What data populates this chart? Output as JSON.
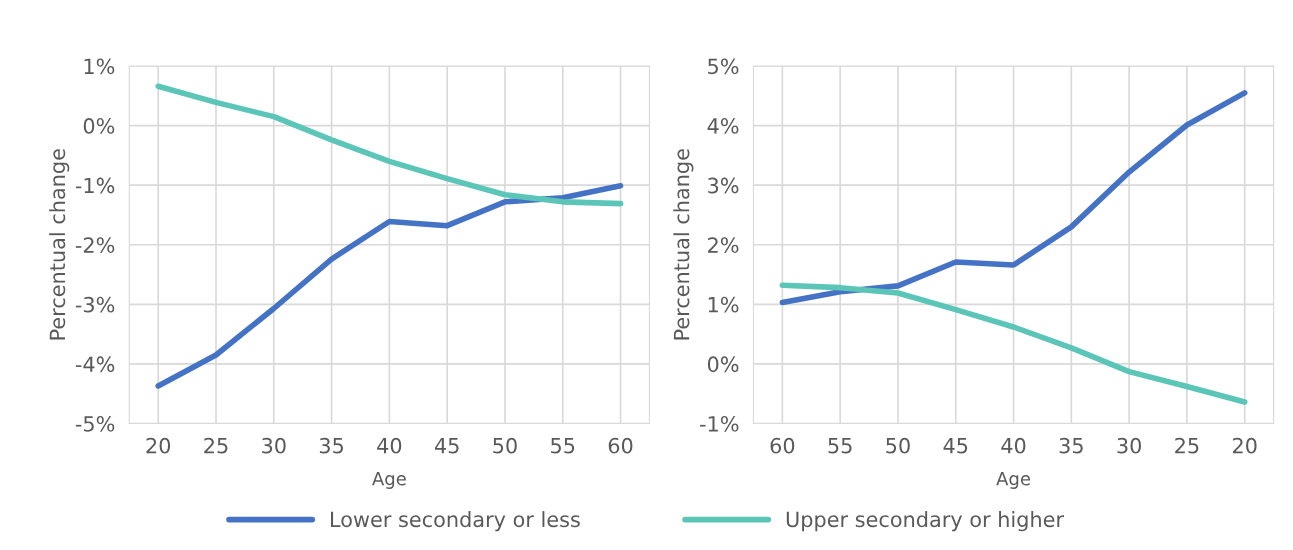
{
  "chart_data": [
    {
      "type": "line",
      "categories": [
        "20",
        "25",
        "30",
        "35",
        "40",
        "45",
        "50",
        "55",
        "60"
      ],
      "xlabel": "Age",
      "ylabel": "Percentual change",
      "series": [
        {
          "name": "Lower secondary or less",
          "color": "#4472c4",
          "values": [
            -4.37,
            -3.85,
            -3.07,
            -2.24,
            -1.61,
            -1.68,
            -1.28,
            -1.21,
            -1.01
          ]
        },
        {
          "name": "Upper secondary or higher",
          "color": "#5bc5b8",
          "values": [
            0.66,
            0.39,
            0.15,
            -0.24,
            -0.6,
            -0.89,
            -1.16,
            -1.28,
            -1.31
          ]
        }
      ],
      "ylim": [
        -5,
        1
      ],
      "yticks": [
        {
          "value": -5,
          "label": "-5%"
        },
        {
          "value": -4,
          "label": "-4%"
        },
        {
          "value": -3,
          "label": "-3%"
        },
        {
          "value": -2,
          "label": "-2%"
        },
        {
          "value": -1,
          "label": "-1%"
        },
        {
          "value": 0,
          "label": "0%"
        },
        {
          "value": 1,
          "label": "1%"
        }
      ],
      "grid": true,
      "legend": "bottom"
    },
    {
      "type": "line",
      "categories": [
        "60",
        "55",
        "50",
        "45",
        "40",
        "35",
        "30",
        "25",
        "20"
      ],
      "xlabel": "Age",
      "ylabel": "Percentual change",
      "series": [
        {
          "name": "Lower secondary or less",
          "color": "#4472c4",
          "values": [
            1.03,
            1.21,
            1.31,
            1.71,
            1.66,
            2.3,
            3.22,
            4.01,
            4.55
          ]
        },
        {
          "name": "Upper secondary or higher",
          "color": "#5bc5b8",
          "values": [
            1.32,
            1.28,
            1.19,
            0.91,
            0.62,
            0.27,
            -0.13,
            -0.38,
            -0.64
          ]
        }
      ],
      "ylim": [
        -1,
        5
      ],
      "yticks": [
        {
          "value": -1,
          "label": "-1%"
        },
        {
          "value": 0,
          "label": "0%"
        },
        {
          "value": 1,
          "label": "1%"
        },
        {
          "value": 2,
          "label": "2%"
        },
        {
          "value": 3,
          "label": "3%"
        },
        {
          "value": 4,
          "label": "4%"
        },
        {
          "value": 5,
          "label": "5%"
        }
      ],
      "grid": true,
      "legend": "bottom"
    }
  ]
}
